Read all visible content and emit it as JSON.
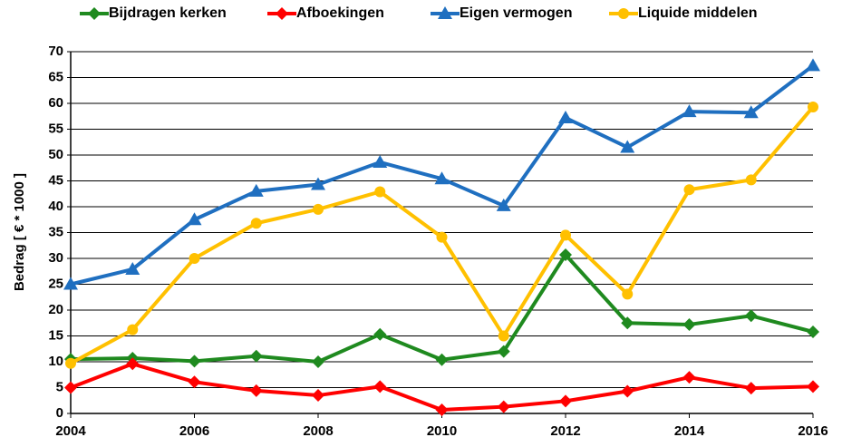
{
  "chart_data": {
    "type": "line",
    "y_label": "Bedrag   [ € * 1000 ]",
    "x": [
      2004,
      2005,
      2006,
      2007,
      2008,
      2009,
      2010,
      2011,
      2012,
      2013,
      2014,
      2015,
      2016
    ],
    "xlim": [
      2004,
      2016
    ],
    "xticks": [
      2004,
      2006,
      2008,
      2010,
      2012,
      2014,
      2016
    ],
    "ylim": [
      0,
      70
    ],
    "yticks": [
      0,
      5,
      10,
      15,
      20,
      25,
      30,
      35,
      40,
      45,
      50,
      55,
      60,
      65,
      70
    ],
    "grid": true,
    "series": [
      {
        "name": "Bijdragen kerken",
        "color": "#1f8a1f",
        "marker": "diamond",
        "values": [
          10.5,
          10.7,
          10.1,
          11.1,
          10,
          15.3,
          10.4,
          12,
          30.7,
          17.5,
          17.2,
          18.9,
          15.8
        ]
      },
      {
        "name": "Afboekingen",
        "color": "#ff0000",
        "marker": "diamond",
        "values": [
          5,
          9.6,
          6.1,
          4.4,
          3.5,
          5.2,
          0.7,
          1.3,
          2.4,
          4.3,
          7,
          4.9,
          5.2
        ]
      },
      {
        "name": "Eigen vermogen",
        "color": "#1f6fc0",
        "marker": "triangle",
        "values": [
          25,
          27.9,
          37.5,
          43,
          44.3,
          48.6,
          45.4,
          40.2,
          57.2,
          51.5,
          58.4,
          58.2,
          67.3
        ]
      },
      {
        "name": "Liquide middelen",
        "color": "#ffc000",
        "marker": "circle",
        "values": [
          9.7,
          16.2,
          30,
          36.8,
          39.5,
          42.9,
          34.1,
          15,
          34.5,
          23.1,
          43.3,
          45.2,
          59.3
        ]
      }
    ]
  }
}
